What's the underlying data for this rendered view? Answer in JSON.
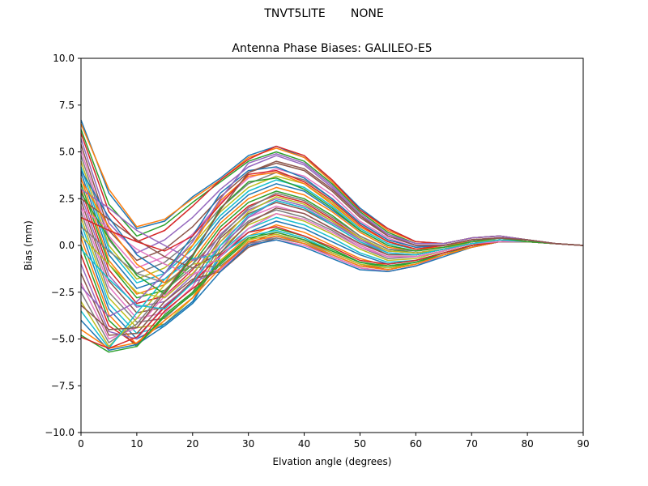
{
  "figure": {
    "suptitle": "TNVT5LITE       NONE"
  },
  "chart_data": {
    "type": "line",
    "title": "Antenna Phase Biases: GALILEO-E5",
    "xlabel": "Elvation angle (degrees)",
    "ylabel": "Bias (mm)",
    "xlim": [
      0,
      90
    ],
    "ylim": [
      -10,
      10
    ],
    "xticks": [
      0,
      10,
      20,
      30,
      40,
      50,
      60,
      70,
      80,
      90
    ],
    "yticks": [
      -10.0,
      -7.5,
      -5.0,
      -2.5,
      0.0,
      2.5,
      5.0,
      7.5,
      10.0
    ],
    "xtick_labels": [
      "0",
      "10",
      "20",
      "30",
      "40",
      "50",
      "60",
      "70",
      "80",
      "90"
    ],
    "ytick_labels": [
      "−10.0",
      "−7.5",
      "−5.0",
      "−2.5",
      "0.0",
      "2.5",
      "5.0",
      "7.5",
      "10.0"
    ],
    "grid": false,
    "legend": false,
    "x": [
      0,
      5,
      10,
      15,
      20,
      25,
      30,
      35,
      40,
      45,
      50,
      55,
      60,
      65,
      70,
      75,
      80,
      85,
      90
    ],
    "colors": [
      "#1f77b4",
      "#ff7f0e",
      "#2ca02c",
      "#d62728",
      "#9467bd",
      "#8c564b",
      "#e377c2",
      "#7f7f7f",
      "#bcbd22",
      "#17becf"
    ],
    "series": [
      {
        "values": [
          6.7,
          2.8,
          0.9,
          1.3,
          2.6,
          3.6,
          4.8,
          5.3,
          4.7,
          3.5,
          2.0,
          0.9,
          0.2,
          0.1,
          0.4,
          0.5,
          0.3,
          0.1,
          0.0
        ]
      },
      {
        "values": [
          6.5,
          3.0,
          1.0,
          1.4,
          2.5,
          3.5,
          4.7,
          5.2,
          4.7,
          3.4,
          1.9,
          0.8,
          0.2,
          0.1,
          0.4,
          0.5,
          0.3,
          0.1,
          0.0
        ]
      },
      {
        "values": [
          6.2,
          2.2,
          0.5,
          1.1,
          2.3,
          3.4,
          4.5,
          5.0,
          4.5,
          3.3,
          1.8,
          0.7,
          0.1,
          0.1,
          0.4,
          0.5,
          0.3,
          0.1,
          0.0
        ]
      },
      {
        "values": [
          6.0,
          1.8,
          0.2,
          0.8,
          2.1,
          3.5,
          4.6,
          5.3,
          4.8,
          3.5,
          1.9,
          0.9,
          0.2,
          0.1,
          0.4,
          0.5,
          0.3,
          0.1,
          0.0
        ]
      },
      {
        "values": [
          5.7,
          1.2,
          -0.4,
          0.3,
          1.5,
          3.0,
          4.2,
          4.8,
          4.3,
          3.1,
          1.6,
          0.6,
          0.1,
          0.1,
          0.4,
          0.5,
          0.3,
          0.1,
          0.0
        ]
      },
      {
        "values": [
          5.4,
          0.8,
          -0.8,
          -0.2,
          1.0,
          2.6,
          3.9,
          4.4,
          4.0,
          2.9,
          1.5,
          0.5,
          0.0,
          0.0,
          0.3,
          0.4,
          0.3,
          0.1,
          0.0
        ]
      },
      {
        "values": [
          5.1,
          0.5,
          -1.2,
          -0.6,
          0.6,
          2.3,
          3.6,
          4.1,
          3.7,
          2.7,
          1.3,
          0.4,
          -0.1,
          0.0,
          0.3,
          0.4,
          0.3,
          0.1,
          0.0
        ]
      },
      {
        "values": [
          4.8,
          0.3,
          -1.5,
          -0.9,
          0.3,
          2.0,
          3.3,
          3.9,
          3.5,
          2.5,
          1.2,
          0.3,
          -0.1,
          0.0,
          0.3,
          0.4,
          0.2,
          0.1,
          0.0
        ]
      },
      {
        "values": [
          4.5,
          0.0,
          -1.8,
          -1.2,
          0.0,
          1.8,
          3.1,
          3.7,
          3.3,
          2.3,
          1.0,
          0.2,
          -0.2,
          -0.1,
          0.3,
          0.4,
          0.2,
          0.1,
          0.0
        ]
      },
      {
        "values": [
          4.2,
          -0.2,
          -2.0,
          -1.5,
          -0.2,
          1.6,
          2.9,
          3.5,
          3.1,
          2.1,
          0.9,
          0.1,
          -0.2,
          -0.1,
          0.2,
          0.4,
          0.2,
          0.1,
          0.0
        ]
      },
      {
        "values": [
          3.9,
          -0.5,
          -2.3,
          -1.8,
          -0.5,
          1.4,
          2.7,
          3.3,
          2.9,
          1.9,
          0.8,
          0.0,
          -0.3,
          -0.1,
          0.2,
          0.3,
          0.2,
          0.1,
          0.0
        ]
      },
      {
        "values": [
          3.6,
          -0.8,
          -2.6,
          -2.1,
          -0.8,
          1.2,
          2.5,
          3.1,
          2.7,
          1.8,
          0.7,
          -0.1,
          -0.3,
          -0.1,
          0.2,
          0.3,
          0.2,
          0.1,
          0.0
        ]
      },
      {
        "values": [
          3.3,
          -1.0,
          -2.8,
          -2.4,
          -1.0,
          1.0,
          2.3,
          2.9,
          2.5,
          1.6,
          0.5,
          -0.2,
          -0.4,
          -0.2,
          0.2,
          0.3,
          0.2,
          0.1,
          0.0
        ]
      },
      {
        "values": [
          3.0,
          -1.3,
          -3.1,
          -2.7,
          -1.3,
          0.8,
          2.1,
          2.7,
          2.3,
          1.4,
          0.4,
          -0.3,
          -0.4,
          -0.2,
          0.2,
          0.3,
          0.2,
          0.1,
          0.0
        ]
      },
      {
        "values": [
          2.7,
          -1.6,
          -3.3,
          -3.0,
          -1.6,
          0.6,
          1.9,
          2.5,
          2.1,
          1.3,
          0.3,
          -0.4,
          -0.5,
          -0.2,
          0.1,
          0.3,
          0.2,
          0.1,
          0.0
        ]
      },
      {
        "values": [
          2.4,
          -1.9,
          -3.6,
          -3.3,
          -1.9,
          0.4,
          1.7,
          2.3,
          1.9,
          1.1,
          0.2,
          -0.5,
          -0.5,
          -0.2,
          0.1,
          0.3,
          0.2,
          0.1,
          0.0
        ]
      },
      {
        "values": [
          2.1,
          -2.2,
          -3.9,
          -3.6,
          -2.2,
          0.2,
          1.5,
          2.1,
          1.7,
          0.9,
          0.0,
          -0.6,
          -0.6,
          -0.3,
          0.1,
          0.2,
          0.2,
          0.1,
          0.0
        ]
      },
      {
        "values": [
          1.8,
          -2.5,
          -4.1,
          -3.9,
          -2.5,
          0.0,
          1.3,
          1.9,
          1.5,
          0.8,
          -0.1,
          -0.7,
          -0.6,
          -0.3,
          0.1,
          0.2,
          0.2,
          0.1,
          0.0
        ]
      },
      {
        "values": [
          1.5,
          -2.8,
          -4.4,
          -4.2,
          -2.8,
          -0.2,
          1.1,
          1.7,
          1.3,
          0.6,
          -0.2,
          -0.8,
          -0.7,
          -0.3,
          0.1,
          0.2,
          0.2,
          0.1,
          0.0
        ]
      },
      {
        "values": [
          1.2,
          -3.1,
          -4.7,
          -4.3,
          -3.1,
          -0.4,
          0.9,
          1.5,
          1.1,
          0.4,
          -0.4,
          -0.9,
          -0.8,
          -0.4,
          0.0,
          0.2,
          0.2,
          0.1,
          0.0
        ]
      },
      {
        "values": [
          0.8,
          -3.4,
          -5.0,
          -4.2,
          -3.0,
          -0.6,
          0.7,
          1.3,
          0.9,
          0.2,
          -0.5,
          -1.0,
          -0.8,
          -0.4,
          0.0,
          0.2,
          0.2,
          0.1,
          0.0
        ]
      },
      {
        "values": [
          0.4,
          -3.7,
          -5.3,
          -4.0,
          -2.8,
          -0.8,
          0.5,
          1.1,
          0.7,
          0.0,
          -0.7,
          -1.1,
          -0.9,
          -0.4,
          0.0,
          0.2,
          0.2,
          0.1,
          0.0
        ]
      },
      {
        "values": [
          0.0,
          -4.0,
          -5.4,
          -3.8,
          -2.6,
          -1.0,
          0.3,
          0.9,
          0.5,
          -0.2,
          -0.9,
          -1.2,
          -0.9,
          -0.5,
          0.0,
          0.2,
          0.2,
          0.1,
          0.0
        ]
      },
      {
        "values": [
          -0.5,
          -4.3,
          -5.3,
          -3.5,
          -2.3,
          -1.2,
          0.1,
          0.7,
          0.3,
          -0.4,
          -1.0,
          -1.3,
          -1.0,
          -0.5,
          -0.1,
          0.2,
          0.2,
          0.1,
          0.0
        ]
      },
      {
        "values": [
          -1.0,
          -4.6,
          -5.0,
          -3.2,
          -2.0,
          -1.3,
          0.0,
          0.5,
          0.2,
          -0.5,
          -1.1,
          -1.3,
          -1.0,
          -0.5,
          -0.1,
          0.2,
          0.2,
          0.1,
          0.0
        ]
      },
      {
        "values": [
          -1.5,
          -4.8,
          -4.7,
          -3.0,
          -1.8,
          -1.4,
          -0.1,
          0.4,
          0.1,
          -0.6,
          -1.2,
          -1.4,
          -1.1,
          -0.5,
          -0.1,
          0.2,
          0.2,
          0.1,
          0.0
        ]
      },
      {
        "values": [
          -2.0,
          -5.0,
          -4.4,
          -2.7,
          -1.5,
          -1.3,
          0.0,
          0.3,
          0.0,
          -0.6,
          -1.2,
          -1.4,
          -1.1,
          -0.5,
          -0.1,
          0.2,
          0.2,
          0.1,
          0.0
        ]
      },
      {
        "values": [
          -2.5,
          -5.2,
          -4.2,
          -2.4,
          -1.2,
          -1.1,
          0.1,
          0.4,
          0.1,
          -0.5,
          -1.1,
          -1.3,
          -1.0,
          -0.5,
          -0.1,
          0.2,
          0.2,
          0.1,
          0.0
        ]
      },
      {
        "values": [
          -3.0,
          -5.4,
          -3.9,
          -2.1,
          -1.0,
          -0.8,
          0.3,
          0.6,
          0.2,
          -0.4,
          -1.0,
          -1.2,
          -1.0,
          -0.5,
          -0.1,
          0.2,
          0.2,
          0.1,
          0.0
        ]
      },
      {
        "values": [
          -3.5,
          -5.5,
          -3.6,
          -1.8,
          -0.7,
          -0.5,
          0.5,
          0.8,
          0.4,
          -0.3,
          -0.9,
          -1.1,
          -0.9,
          -0.4,
          0.0,
          0.2,
          0.2,
          0.1,
          0.0
        ]
      },
      {
        "values": [
          -4.0,
          -5.6,
          -5.3,
          -4.3,
          -3.1,
          -1.4,
          0.0,
          0.3,
          -0.1,
          -0.7,
          -1.3,
          -1.4,
          -1.1,
          -0.6,
          -0.1,
          0.2,
          0.2,
          0.1,
          0.0
        ]
      },
      {
        "values": [
          -4.5,
          -5.5,
          -5.2,
          -4.0,
          -2.8,
          -1.2,
          0.2,
          0.5,
          0.1,
          -0.5,
          -1.1,
          -1.3,
          -1.0,
          -0.5,
          -0.1,
          0.2,
          0.2,
          0.1,
          0.0
        ]
      },
      {
        "values": [
          -4.8,
          -5.7,
          -5.4,
          -3.7,
          -2.5,
          -0.9,
          0.4,
          0.7,
          0.3,
          -0.3,
          -0.9,
          -1.1,
          -0.9,
          -0.4,
          0.0,
          0.2,
          0.2,
          0.1,
          0.0
        ]
      },
      {
        "values": [
          -4.9,
          -5.5,
          -4.9,
          -3.3,
          -2.0,
          -0.5,
          0.7,
          1.0,
          0.5,
          -0.1,
          -0.8,
          -1.0,
          -0.8,
          -0.4,
          0.0,
          0.2,
          0.2,
          0.1,
          0.0
        ]
      },
      {
        "values": [
          3.0,
          2.0,
          0.8,
          0.0,
          -0.8,
          -0.2,
          1.5,
          2.4,
          2.0,
          1.2,
          0.3,
          -0.3,
          -0.4,
          -0.2,
          0.2,
          0.3,
          0.2,
          0.1,
          0.0
        ]
      },
      {
        "values": [
          2.5,
          1.4,
          0.3,
          -0.6,
          -1.2,
          -0.4,
          1.2,
          2.0,
          1.7,
          0.9,
          0.1,
          -0.5,
          -0.5,
          -0.2,
          0.1,
          0.3,
          0.2,
          0.1,
          0.0
        ]
      },
      {
        "values": [
          2.0,
          0.9,
          -0.2,
          -1.0,
          -1.6,
          -0.6,
          0.9,
          1.7,
          1.4,
          0.7,
          -0.1,
          -0.6,
          -0.6,
          -0.3,
          0.1,
          0.2,
          0.2,
          0.1,
          0.0
        ]
      },
      {
        "values": [
          1.0,
          -0.3,
          -1.5,
          -2.0,
          -1.0,
          0.5,
          2.0,
          2.8,
          2.4,
          1.5,
          0.5,
          -0.2,
          -0.3,
          -0.1,
          0.2,
          0.3,
          0.2,
          0.1,
          0.0
        ]
      },
      {
        "values": [
          0.5,
          -1.0,
          -2.5,
          -2.8,
          -1.5,
          0.2,
          1.8,
          2.6,
          2.2,
          1.3,
          0.4,
          -0.3,
          -0.4,
          -0.2,
          0.2,
          0.3,
          0.2,
          0.1,
          0.0
        ]
      },
      {
        "values": [
          -0.2,
          -1.8,
          -3.2,
          -3.4,
          -2.0,
          0.0,
          1.6,
          2.4,
          2.0,
          1.1,
          0.2,
          -0.4,
          -0.5,
          -0.2,
          0.1,
          0.3,
          0.2,
          0.1,
          0.0
        ]
      },
      {
        "values": [
          4.0,
          1.5,
          -0.5,
          -1.5,
          0.5,
          2.8,
          4.0,
          4.2,
          3.6,
          2.5,
          1.2,
          0.3,
          -0.1,
          0.0,
          0.3,
          0.4,
          0.3,
          0.1,
          0.0
        ]
      },
      {
        "values": [
          3.5,
          1.0,
          -1.0,
          -2.0,
          0.0,
          2.4,
          3.7,
          3.9,
          3.3,
          2.2,
          1.0,
          0.2,
          -0.2,
          -0.1,
          0.3,
          0.4,
          0.2,
          0.1,
          0.0
        ]
      },
      {
        "values": [
          2.8,
          0.4,
          -1.6,
          -2.6,
          -0.6,
          2.0,
          3.4,
          3.6,
          3.0,
          2.0,
          0.8,
          0.0,
          -0.3,
          -0.1,
          0.2,
          0.4,
          0.2,
          0.1,
          0.0
        ]
      },
      {
        "values": [
          1.5,
          0.8,
          0.2,
          -0.3,
          0.5,
          2.2,
          3.8,
          4.0,
          3.4,
          2.4,
          1.1,
          0.2,
          -0.2,
          0.0,
          0.3,
          0.4,
          0.3,
          0.1,
          0.0
        ]
      },
      {
        "values": [
          -2.2,
          -3.8,
          -3.0,
          -1.5,
          0.2,
          2.5,
          4.4,
          4.9,
          4.4,
          3.2,
          1.7,
          0.6,
          0.0,
          0.0,
          0.3,
          0.4,
          0.3,
          0.1,
          0.0
        ]
      },
      {
        "values": [
          -3.2,
          -4.5,
          -4.4,
          -2.5,
          -0.5,
          1.9,
          3.9,
          4.5,
          4.1,
          3.0,
          1.6,
          0.5,
          0.0,
          0.0,
          0.3,
          0.4,
          0.3,
          0.1,
          0.0
        ]
      }
    ]
  }
}
